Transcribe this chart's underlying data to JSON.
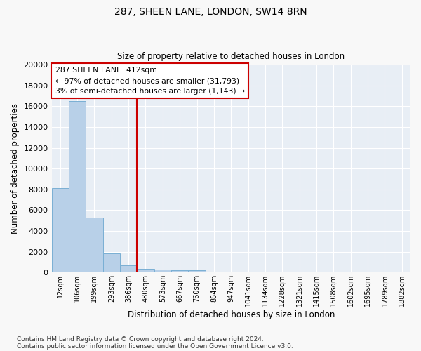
{
  "title1": "287, SHEEN LANE, LONDON, SW14 8RN",
  "title2": "Size of property relative to detached houses in London",
  "xlabel": "Distribution of detached houses by size in London",
  "ylabel": "Number of detached properties",
  "annotation_title": "287 SHEEN LANE: 412sqm",
  "annotation_line1": "← 97% of detached houses are smaller (31,793)",
  "annotation_line2": "3% of semi-detached houses are larger (1,143) →",
  "footer1": "Contains HM Land Registry data © Crown copyright and database right 2024.",
  "footer2": "Contains public sector information licensed under the Open Government Licence v3.0.",
  "bar_color": "#b8d0e8",
  "bar_edge_color": "#7aafd4",
  "vline_color": "#cc0000",
  "vline_x": 4.5,
  "categories": [
    "12sqm",
    "106sqm",
    "199sqm",
    "293sqm",
    "386sqm",
    "480sqm",
    "573sqm",
    "667sqm",
    "760sqm",
    "854sqm",
    "947sqm",
    "1041sqm",
    "1134sqm",
    "1228sqm",
    "1321sqm",
    "1415sqm",
    "1508sqm",
    "1602sqm",
    "1695sqm",
    "1789sqm",
    "1882sqm"
  ],
  "values": [
    8100,
    16500,
    5300,
    1850,
    680,
    370,
    280,
    220,
    190,
    0,
    0,
    0,
    0,
    0,
    0,
    0,
    0,
    0,
    0,
    0,
    0
  ],
  "ylim": [
    0,
    20000
  ],
  "yticks": [
    0,
    2000,
    4000,
    6000,
    8000,
    10000,
    12000,
    14000,
    16000,
    18000,
    20000
  ],
  "fig_bg_color": "#f8f8f8",
  "ax_bg_color": "#e8eef5",
  "grid_color": "#ffffff",
  "annotation_border_color": "#cc0000"
}
